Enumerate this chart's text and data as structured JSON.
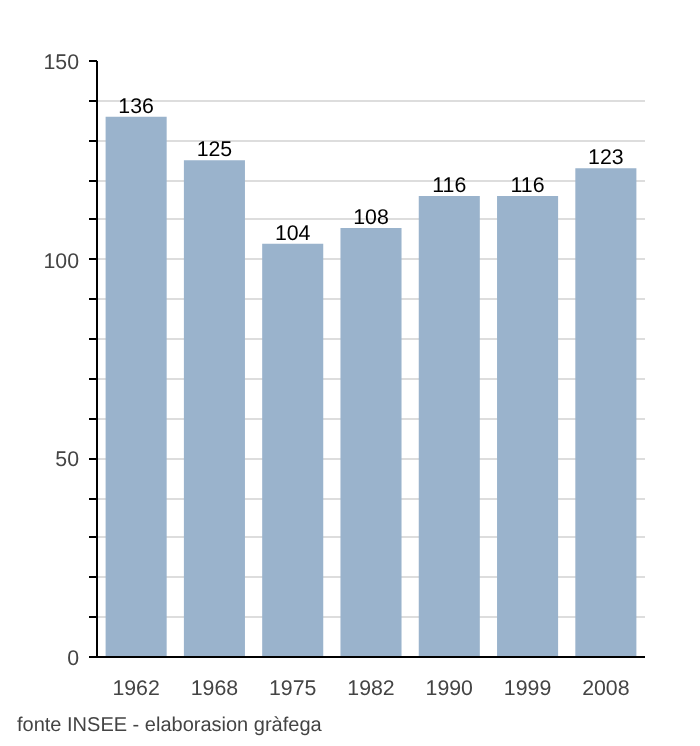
{
  "chart_data": {
    "type": "bar",
    "categories": [
      "1962",
      "1968",
      "1975",
      "1982",
      "1990",
      "1999",
      "2008"
    ],
    "values": [
      136,
      125,
      104,
      108,
      116,
      116,
      123
    ],
    "color": "#9ab3cc",
    "data_labels": true,
    "ylim": [
      0,
      150
    ],
    "yticks": [
      0,
      {
        "value": 10,
        "label": null
      },
      {
        "value": 20,
        "label": null
      },
      {
        "value": 30,
        "label": null
      },
      {
        "value": 40,
        "label": null
      },
      50,
      {
        "value": 60,
        "label": null
      },
      {
        "value": 70,
        "label": null
      },
      {
        "value": 80,
        "label": null
      },
      {
        "value": 90,
        "label": null
      },
      100,
      {
        "value": 110,
        "label": null
      },
      {
        "value": 120,
        "label": null
      },
      {
        "value": 130,
        "label": null
      },
      {
        "value": 140,
        "label": null
      },
      150
    ],
    "grid": "y",
    "annotations": [
      "fonte INSEE - elaborasion gràfega"
    ]
  }
}
